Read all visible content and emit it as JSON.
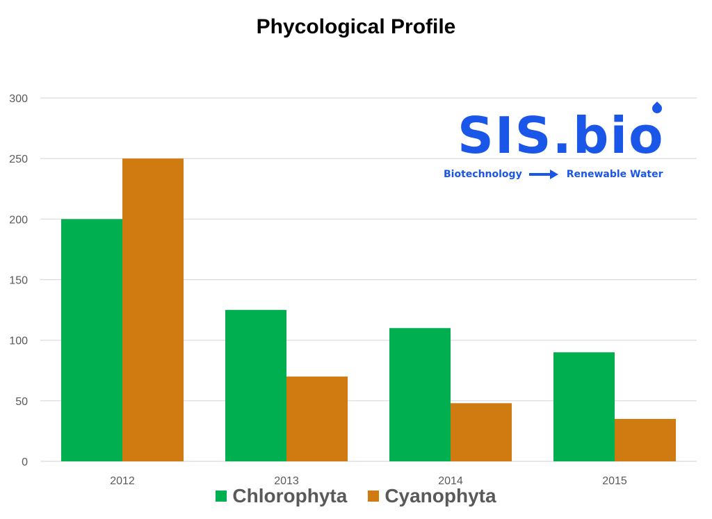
{
  "chart_data": {
    "type": "bar",
    "title": "Phycological Profile",
    "categories": [
      "2012",
      "2013",
      "2014",
      "2015"
    ],
    "series": [
      {
        "name": "Chlorophyta",
        "values": [
          200,
          125,
          110,
          90
        ],
        "color": "#00b050"
      },
      {
        "name": "Cyanophyta",
        "values": [
          250,
          70,
          48,
          35
        ],
        "color": "#d07b12"
      }
    ],
    "ylim": [
      0,
      300
    ],
    "yticks": [
      0,
      50,
      100,
      150,
      200,
      250,
      300
    ],
    "grid": true,
    "legend_position": "bottom",
    "xlabel": "",
    "ylabel": ""
  },
  "logo": {
    "main": "SIS.bio",
    "tag_left": "Biotechnology",
    "tag_right": "Renewable Water",
    "color": "#1a56e8",
    "icon": "droplet-icon"
  },
  "colors": {
    "grid": "#d9d9d9",
    "axis_text": "#595959"
  }
}
